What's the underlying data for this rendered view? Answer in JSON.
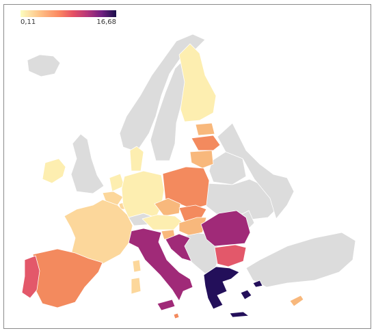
{
  "legend": {
    "min_label": "0,11",
    "max_label": "16,68",
    "min_value": 0.11,
    "max_value": 16.68,
    "colormap": [
      "#fcfdbf",
      "#fec287",
      "#fb8861",
      "#e55064",
      "#b5367a",
      "#6f1f81",
      "#1a0f4a"
    ]
  },
  "colors": {
    "no_data": "#dcdcdc",
    "very_low": "#fdeeb0",
    "low": "#fcd79b",
    "mid_low": "#f8b87c",
    "mid": "#f38a5e",
    "mid_high": "#e3586a",
    "high": "#a02a78",
    "very_high": "#230f5a"
  },
  "countries": [
    {
      "name": "iceland",
      "data": false
    },
    {
      "name": "norway",
      "data": false
    },
    {
      "name": "sweden",
      "data": false
    },
    {
      "name": "finland",
      "class": "very_low"
    },
    {
      "name": "estonia",
      "class": "mid_low"
    },
    {
      "name": "latvia",
      "class": "mid"
    },
    {
      "name": "lithuania",
      "class": "mid_low"
    },
    {
      "name": "ireland",
      "class": "very_low"
    },
    {
      "name": "united-kingdom",
      "data": false
    },
    {
      "name": "denmark",
      "class": "very_low"
    },
    {
      "name": "netherlands",
      "class": "very_low"
    },
    {
      "name": "belgium",
      "class": "low"
    },
    {
      "name": "luxembourg",
      "class": "low"
    },
    {
      "name": "france",
      "class": "low"
    },
    {
      "name": "germany",
      "class": "very_low"
    },
    {
      "name": "poland",
      "class": "mid"
    },
    {
      "name": "czechia",
      "class": "mid_low"
    },
    {
      "name": "slovakia",
      "class": "mid"
    },
    {
      "name": "austria",
      "class": "very_low"
    },
    {
      "name": "switzerland",
      "data": false
    },
    {
      "name": "hungary",
      "class": "mid_low"
    },
    {
      "name": "slovenia",
      "class": "mid_low"
    },
    {
      "name": "croatia",
      "class": "high"
    },
    {
      "name": "balkans",
      "data": false
    },
    {
      "name": "romania",
      "class": "high"
    },
    {
      "name": "bulgaria",
      "class": "mid_high"
    },
    {
      "name": "greece",
      "class": "very_high"
    },
    {
      "name": "greek-islands",
      "class": "very_high"
    },
    {
      "name": "crete",
      "class": "very_high"
    },
    {
      "name": "italy",
      "class": "high"
    },
    {
      "name": "sicily",
      "class": "high"
    },
    {
      "name": "sardinia",
      "class": "low"
    },
    {
      "name": "corsica",
      "class": "low"
    },
    {
      "name": "malta",
      "class": "mid"
    },
    {
      "name": "spain",
      "class": "mid"
    },
    {
      "name": "portugal",
      "class": "mid_high"
    },
    {
      "name": "cyprus",
      "class": "mid_low"
    },
    {
      "name": "turkey",
      "data": false
    },
    {
      "name": "belarus",
      "data": false
    },
    {
      "name": "ukraine",
      "data": false
    },
    {
      "name": "russia",
      "data": false
    },
    {
      "name": "moldova",
      "data": false
    }
  ]
}
